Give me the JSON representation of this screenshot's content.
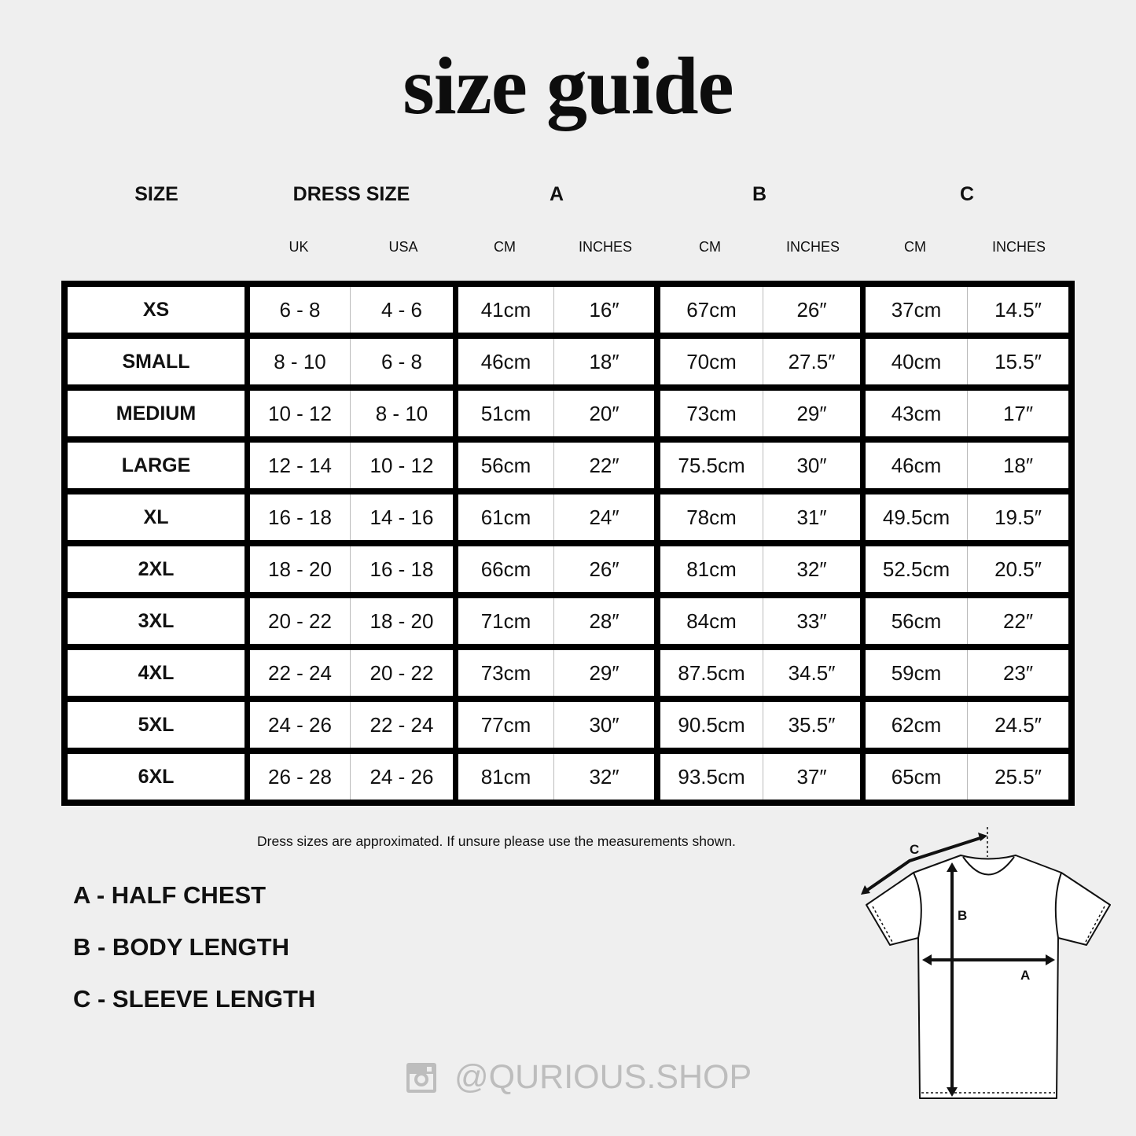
{
  "title": "size guide",
  "headers": {
    "size": "SIZE",
    "dress_size": "DRESS SIZE",
    "a": "A",
    "b": "B",
    "c": "C"
  },
  "subheaders": [
    "UK",
    "USA",
    "CM",
    "INCHES",
    "CM",
    "INCHES",
    "CM",
    "INCHES"
  ],
  "rows": [
    [
      "XS",
      "6 - 8",
      "4 - 6",
      "41cm",
      "16″",
      "67cm",
      "26″",
      "37cm",
      "14.5″"
    ],
    [
      "SMALL",
      "8 - 10",
      "6 - 8",
      "46cm",
      "18″",
      "70cm",
      "27.5″",
      "40cm",
      "15.5″"
    ],
    [
      "MEDIUM",
      "10 - 12",
      "8 - 10",
      "51cm",
      "20″",
      "73cm",
      "29″",
      "43cm",
      "17″"
    ],
    [
      "LARGE",
      "12 - 14",
      "10 - 12",
      "56cm",
      "22″",
      "75.5cm",
      "30″",
      "46cm",
      "18″"
    ],
    [
      "XL",
      "16 - 18",
      "14 - 16",
      "61cm",
      "24″",
      "78cm",
      "31″",
      "49.5cm",
      "19.5″"
    ],
    [
      "2XL",
      "18 - 20",
      "16 - 18",
      "66cm",
      "26″",
      "81cm",
      "32″",
      "52.5cm",
      "20.5″"
    ],
    [
      "3XL",
      "20 - 22",
      "18 - 20",
      "71cm",
      "28″",
      "84cm",
      "33″",
      "56cm",
      "22″"
    ],
    [
      "4XL",
      "22 - 24",
      "20 - 22",
      "73cm",
      "29″",
      "87.5cm",
      "34.5″",
      "59cm",
      "23″"
    ],
    [
      "5XL",
      "24 - 26",
      "22 - 24",
      "77cm",
      "30″",
      "90.5cm",
      "35.5″",
      "62cm",
      "24.5″"
    ],
    [
      "6XL",
      "26 - 28",
      "24 - 26",
      "81cm",
      "32″",
      "93.5cm",
      "37″",
      "65cm",
      "25.5″"
    ]
  ],
  "note": "Dress sizes are approximated. If unsure please use the measurements shown.",
  "legend": [
    "A - HALF CHEST",
    "B - BODY LENGTH",
    "C - SLEEVE LENGTH"
  ],
  "diagram_labels": {
    "a": "A",
    "b": "B",
    "c": "C"
  },
  "social": {
    "icon": "instagram-icon",
    "handle": "@QURIOUS.SHOP"
  },
  "colors": {
    "background": "#efefef",
    "border": "#000000",
    "handle": "#bdbdbd"
  }
}
